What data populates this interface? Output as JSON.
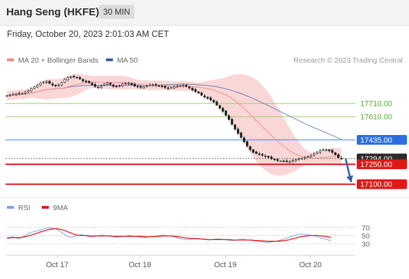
{
  "header": {
    "title": "Hang Seng (HKFE)",
    "timeframe": "30 MIN"
  },
  "date_line": "Friday, October 20, 2023 2:01:03 AM CET",
  "legend": {
    "ma20_bb": "MA 20 + Bollinger Bands",
    "ma50": "MA 50",
    "credit": "Research © 2023 Trading Central",
    "ma20_color": "#f08c8c",
    "ma50_color": "#3a5fa8"
  },
  "rsi_legend": {
    "rsi": "RSI",
    "ma9": "9MA",
    "rsi_color": "#7f9fe6",
    "ma9_color": "#e31a1a"
  },
  "chart_data": [
    {
      "type": "candlestick",
      "ylim": [
        17030,
        17945
      ],
      "x_labels": [
        "Oct 17",
        "Oct 18",
        "Oct 19",
        "Oct 20"
      ],
      "x_label_positions": [
        12.3,
        32.5,
        53.4,
        74.2
      ],
      "n_bars": 152,
      "close_series": [
        17768,
        17774,
        17778,
        17782,
        17788,
        17786,
        17794,
        17808,
        17822,
        17838,
        17850,
        17864,
        17872,
        17876,
        17862,
        17848,
        17842,
        17850,
        17868,
        17892,
        17906,
        17912,
        17910,
        17904,
        17896,
        17880,
        17874,
        17866,
        17852,
        17838,
        17832,
        17842,
        17856,
        17862,
        17854,
        17840,
        17836,
        17844,
        17856,
        17864,
        17862,
        17852,
        17842,
        17836,
        17832,
        17838,
        17844,
        17850,
        17852,
        17848,
        17842,
        17836,
        17830,
        17826,
        17830,
        17836,
        17840,
        17844,
        17846,
        17838,
        17826,
        17812,
        17800,
        17788,
        17772,
        17758,
        17748,
        17736,
        17720,
        17698,
        17674,
        17650,
        17620,
        17588,
        17552,
        17516,
        17484,
        17452,
        17420,
        17388,
        17360,
        17340,
        17332,
        17324,
        17318,
        17310,
        17302,
        17292,
        17284,
        17278,
        17276,
        17272,
        17270,
        17272,
        17278,
        17286,
        17290,
        17296,
        17302,
        17310,
        17318,
        17330,
        17342,
        17354,
        17362,
        17360,
        17352,
        17340,
        17322,
        17300,
        17294
      ],
      "levels": [
        {
          "value": 17710.0,
          "label": "17710.00",
          "kind": "resistance"
        },
        {
          "value": 17610.0,
          "label": "17610.00",
          "kind": "resistance"
        },
        {
          "value": 17435.0,
          "label": "17435.00",
          "kind": "pivot"
        },
        {
          "value": 17294.0,
          "label": "17294.00",
          "kind": "last"
        },
        {
          "value": 17250.0,
          "label": "17250.00",
          "kind": "support"
        },
        {
          "value": 17100.0,
          "label": "17100.00",
          "kind": "support"
        }
      ],
      "forecast_arrow": {
        "from": 17294,
        "to": 17115
      }
    },
    {
      "type": "line",
      "ylim": [
        10,
        85
      ],
      "y_ticks": [
        70,
        50,
        30
      ],
      "series": [
        {
          "name": "RSI",
          "values": [
            45,
            46,
            47,
            44,
            42,
            46,
            50,
            55,
            58,
            60,
            62,
            64,
            66,
            68,
            69,
            68,
            66,
            62,
            57,
            52,
            48,
            46,
            47,
            50,
            52,
            51,
            49,
            47,
            46,
            48,
            50,
            51,
            50,
            49,
            48,
            47,
            46,
            47,
            48,
            49,
            50,
            49,
            48,
            47,
            46,
            45,
            46,
            47,
            48,
            49,
            50,
            51,
            50,
            49,
            48,
            46,
            44,
            42,
            41,
            40,
            41,
            42,
            43,
            42,
            41,
            40,
            39,
            40,
            41,
            42,
            41,
            40,
            39,
            38,
            38,
            39,
            40,
            41,
            40,
            39,
            38,
            37,
            36,
            35,
            34,
            33,
            34,
            35,
            36,
            38,
            40,
            42,
            45,
            48,
            50,
            52,
            54,
            53,
            52,
            51,
            50,
            48,
            46,
            44,
            42,
            40,
            36
          ]
        },
        {
          "name": "9MA",
          "values": [
            44,
            44,
            45,
            45,
            45,
            46,
            47,
            49,
            51,
            54,
            56,
            59,
            61,
            63,
            65,
            66,
            67,
            66,
            64,
            62,
            59,
            56,
            53,
            51,
            50,
            50,
            50,
            49,
            49,
            49,
            49,
            49,
            49,
            49,
            49,
            48,
            48,
            48,
            48,
            48,
            48,
            48,
            48,
            48,
            48,
            47,
            47,
            47,
            47,
            48,
            48,
            49,
            49,
            49,
            49,
            48,
            47,
            46,
            45,
            44,
            43,
            43,
            42,
            42,
            41,
            41,
            40,
            40,
            40,
            40,
            40,
            40,
            40,
            40,
            39,
            39,
            39,
            39,
            39,
            39,
            39,
            38,
            38,
            37,
            37,
            36,
            36,
            36,
            36,
            36,
            37,
            38,
            39,
            41,
            43,
            45,
            47,
            48,
            49,
            50,
            50,
            50,
            50,
            49,
            48,
            47,
            45
          ]
        }
      ]
    }
  ]
}
